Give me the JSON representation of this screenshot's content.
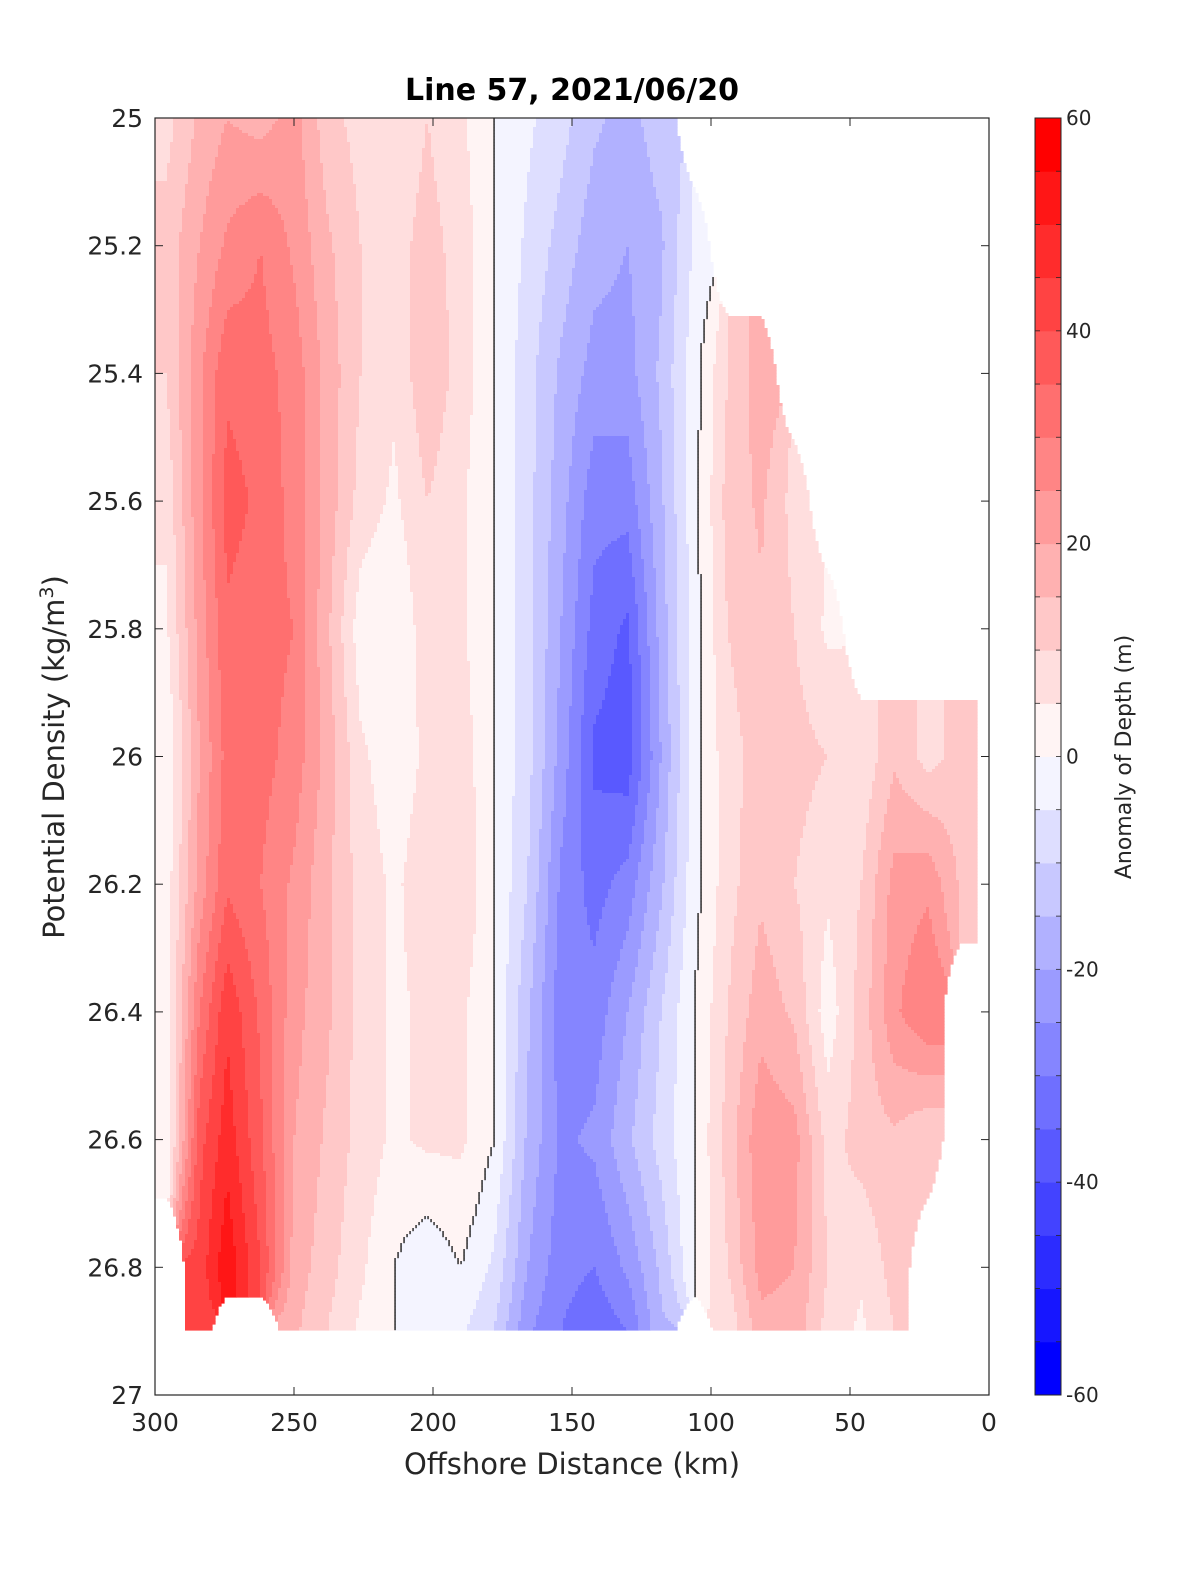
{
  "chart_data": {
    "type": "contour",
    "title": "Line 57, 2021/06/20",
    "xlabel": "Offshore Distance (km)",
    "ylabel_main": "Potential Density (kg/m",
    "ylabel_sup": "3",
    "ylabel_close": ")",
    "xlim": [
      300,
      0
    ],
    "ylim": [
      25,
      27
    ],
    "y_reversed": true,
    "x_reversed": true,
    "xticks": [
      300,
      250,
      200,
      150,
      100,
      50,
      0
    ],
    "xtick_labels": [
      "300",
      "250",
      "200",
      "150",
      "100",
      "50",
      "0"
    ],
    "yticks": [
      25,
      25.2,
      25.4,
      25.6,
      25.8,
      26,
      26.2,
      26.4,
      26.6,
      26.8,
      27
    ],
    "ytick_labels": [
      "25",
      "25.2",
      "25.4",
      "25.6",
      "25.8",
      "26",
      "26.2",
      "26.4",
      "26.6",
      "26.8",
      "27"
    ],
    "colorbar": {
      "label": "Anomaly of Depth (m)",
      "limits": [
        -60,
        60
      ],
      "tick_values": [
        60,
        40,
        20,
        0,
        -20,
        -40,
        -60
      ],
      "tick_labels": [
        "60",
        "40",
        "20",
        "0",
        "-20",
        "-40",
        "-60"
      ],
      "level_step": 5,
      "colormap": "blue-white-red",
      "low_color": "#0000ff",
      "mid_color": "#ffffff",
      "high_color": "#ff0000"
    },
    "anomaly_grid": {
      "x": [
        296,
        284,
        274,
        262,
        250,
        238,
        226,
        214,
        202,
        190,
        178,
        166,
        154,
        142,
        130,
        118,
        106,
        94,
        82,
        70,
        58,
        46,
        34,
        22,
        10
      ],
      "y": [
        25.0,
        25.2,
        25.4,
        25.6,
        25.8,
        26.0,
        26.2,
        26.4,
        26.6,
        26.8,
        26.9
      ],
      "values": [
        [
          8,
          16,
          20,
          18,
          22,
          12,
          8,
          6,
          10,
          6,
          0,
          -4,
          -8,
          -14,
          -17,
          -12,
          null,
          null,
          null,
          null,
          null,
          null,
          null,
          null,
          null
        ],
        [
          12,
          20,
          26,
          30,
          24,
          16,
          10,
          8,
          12,
          8,
          0,
          -6,
          -12,
          -18,
          -20,
          -16,
          -4,
          null,
          null,
          null,
          null,
          null,
          null,
          null,
          null
        ],
        [
          10,
          24,
          34,
          32,
          28,
          18,
          10,
          6,
          14,
          8,
          0,
          -8,
          -16,
          -22,
          -22,
          -14,
          -2,
          10,
          18,
          null,
          null,
          null,
          null,
          null,
          null
        ],
        [
          6,
          24,
          37,
          34,
          28,
          18,
          8,
          4,
          10,
          6,
          0,
          -8,
          -18,
          -28,
          -28,
          -16,
          -2,
          12,
          16,
          8,
          null,
          null,
          null,
          null,
          null
        ],
        [
          4,
          22,
          34,
          32,
          30,
          16,
          2,
          0,
          8,
          6,
          0,
          -8,
          -20,
          -32,
          -36,
          -18,
          -2,
          10,
          14,
          10,
          4,
          null,
          null,
          null,
          null
        ],
        [
          0,
          20,
          32,
          32,
          28,
          18,
          6,
          2,
          6,
          8,
          0,
          -8,
          -22,
          -36,
          -38,
          -20,
          -2,
          8,
          12,
          12,
          10,
          6,
          14,
          8,
          12
        ],
        [
          2,
          22,
          34,
          30,
          24,
          16,
          8,
          4,
          8,
          10,
          0,
          -10,
          -26,
          -32,
          -28,
          -16,
          -2,
          8,
          14,
          10,
          6,
          10,
          22,
          24,
          14
        ],
        [
          2,
          30,
          44,
          34,
          22,
          16,
          8,
          4,
          6,
          6,
          0,
          -14,
          -28,
          -28,
          -20,
          -10,
          0,
          10,
          18,
          14,
          2,
          12,
          24,
          30,
          null
        ],
        [
          0,
          38,
          48,
          36,
          20,
          14,
          8,
          4,
          6,
          6,
          0,
          -16,
          -26,
          -24,
          -16,
          -8,
          0,
          12,
          24,
          22,
          8,
          12,
          14,
          10,
          null
        ],
        [
          null,
          42,
          54,
          40,
          18,
          12,
          6,
          0,
          -4,
          0,
          -6,
          -20,
          -28,
          -30,
          -24,
          -14,
          0,
          10,
          22,
          20,
          10,
          6,
          12,
          null,
          null
        ],
        [
          null,
          42,
          null,
          null,
          16,
          10,
          4,
          0,
          0,
          -4,
          -10,
          -24,
          -30,
          -34,
          -30,
          -16,
          null,
          6,
          18,
          18,
          8,
          4,
          10,
          null,
          null
        ]
      ]
    }
  }
}
